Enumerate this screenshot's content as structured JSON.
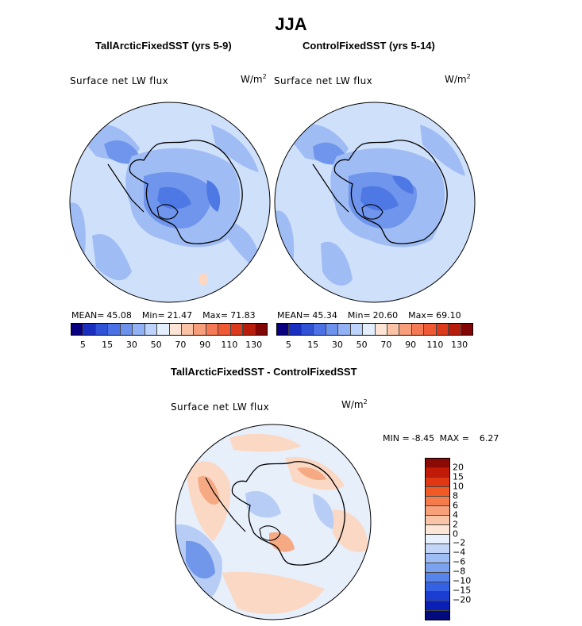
{
  "title": "JJA",
  "panels": [
    {
      "title": "TallArcticFixedSST (yrs 5-9)",
      "variable": "Surface net LW flux",
      "units_base": "W/m",
      "units_exp": "2",
      "stats": {
        "mean_label": "MEAN=",
        "mean": "45.08",
        "min_label": "Min=",
        "min": "21.47",
        "max_label": "Max=",
        "max": "71.83"
      }
    },
    {
      "title": "ControlFixedSST (yrs 5-14)",
      "variable": "Surface net LW flux",
      "units_base": "W/m",
      "units_exp": "2",
      "stats": {
        "mean_label": "MEAN=",
        "mean": "45.34",
        "min_label": "Min=",
        "min": "20.60",
        "max_label": "Max=",
        "max": "69.10"
      }
    }
  ],
  "abs_colorbar": {
    "colors": [
      "#08007f",
      "#1a2fbf",
      "#2f52d6",
      "#4a72e6",
      "#6c92ee",
      "#93b2f5",
      "#bdd3fb",
      "#e3efff",
      "#fde4d4",
      "#fbc3a6",
      "#f89e7b",
      "#f47a55",
      "#ef5a35",
      "#dc3a1b",
      "#b81d0c",
      "#820606"
    ],
    "tick_labels": [
      "5",
      "15",
      "30",
      "50",
      "70",
      "90",
      "110",
      "130"
    ]
  },
  "diff_panel": {
    "title": "TallArcticFixedSST - ControlFixedSST",
    "variable": "Surface net LW flux",
    "units_base": "W/m",
    "units_exp": "2",
    "min_label": "MIN =",
    "min": "-8.45",
    "max_label": "MAX =",
    "max": "6.27"
  },
  "diff_colorbar": {
    "colors": [
      "#8a0a05",
      "#c21a08",
      "#e03812",
      "#f25a25",
      "#f47c4c",
      "#f7a07a",
      "#fac4a8",
      "#fde5d8",
      "#e8f1fd",
      "#c3d6f8",
      "#9ebdf4",
      "#7ba2ef",
      "#5684ea",
      "#3562e2",
      "#1b3dd2",
      "#0a1fb5",
      "#020a7c"
    ],
    "tick_labels": [
      "20",
      "15",
      "10",
      "8",
      "6",
      "4",
      "2",
      "0",
      "−2",
      "−4",
      "−6",
      "−8",
      "−10",
      "−15",
      "−20"
    ]
  },
  "map_colors": {
    "abs_background": "#cfe0fb",
    "abs_mid": "#9fbcf4",
    "abs_dark": "#6f95ec",
    "abs_darker": "#4e78e4",
    "diff_background": "#e7effb",
    "diff_warm": "#fbd8c4",
    "diff_warm_strong": "#f6aa84",
    "diff_cool": "#b7cdf5",
    "diff_cool_strong": "#7097ea",
    "coastline": "#000000"
  }
}
